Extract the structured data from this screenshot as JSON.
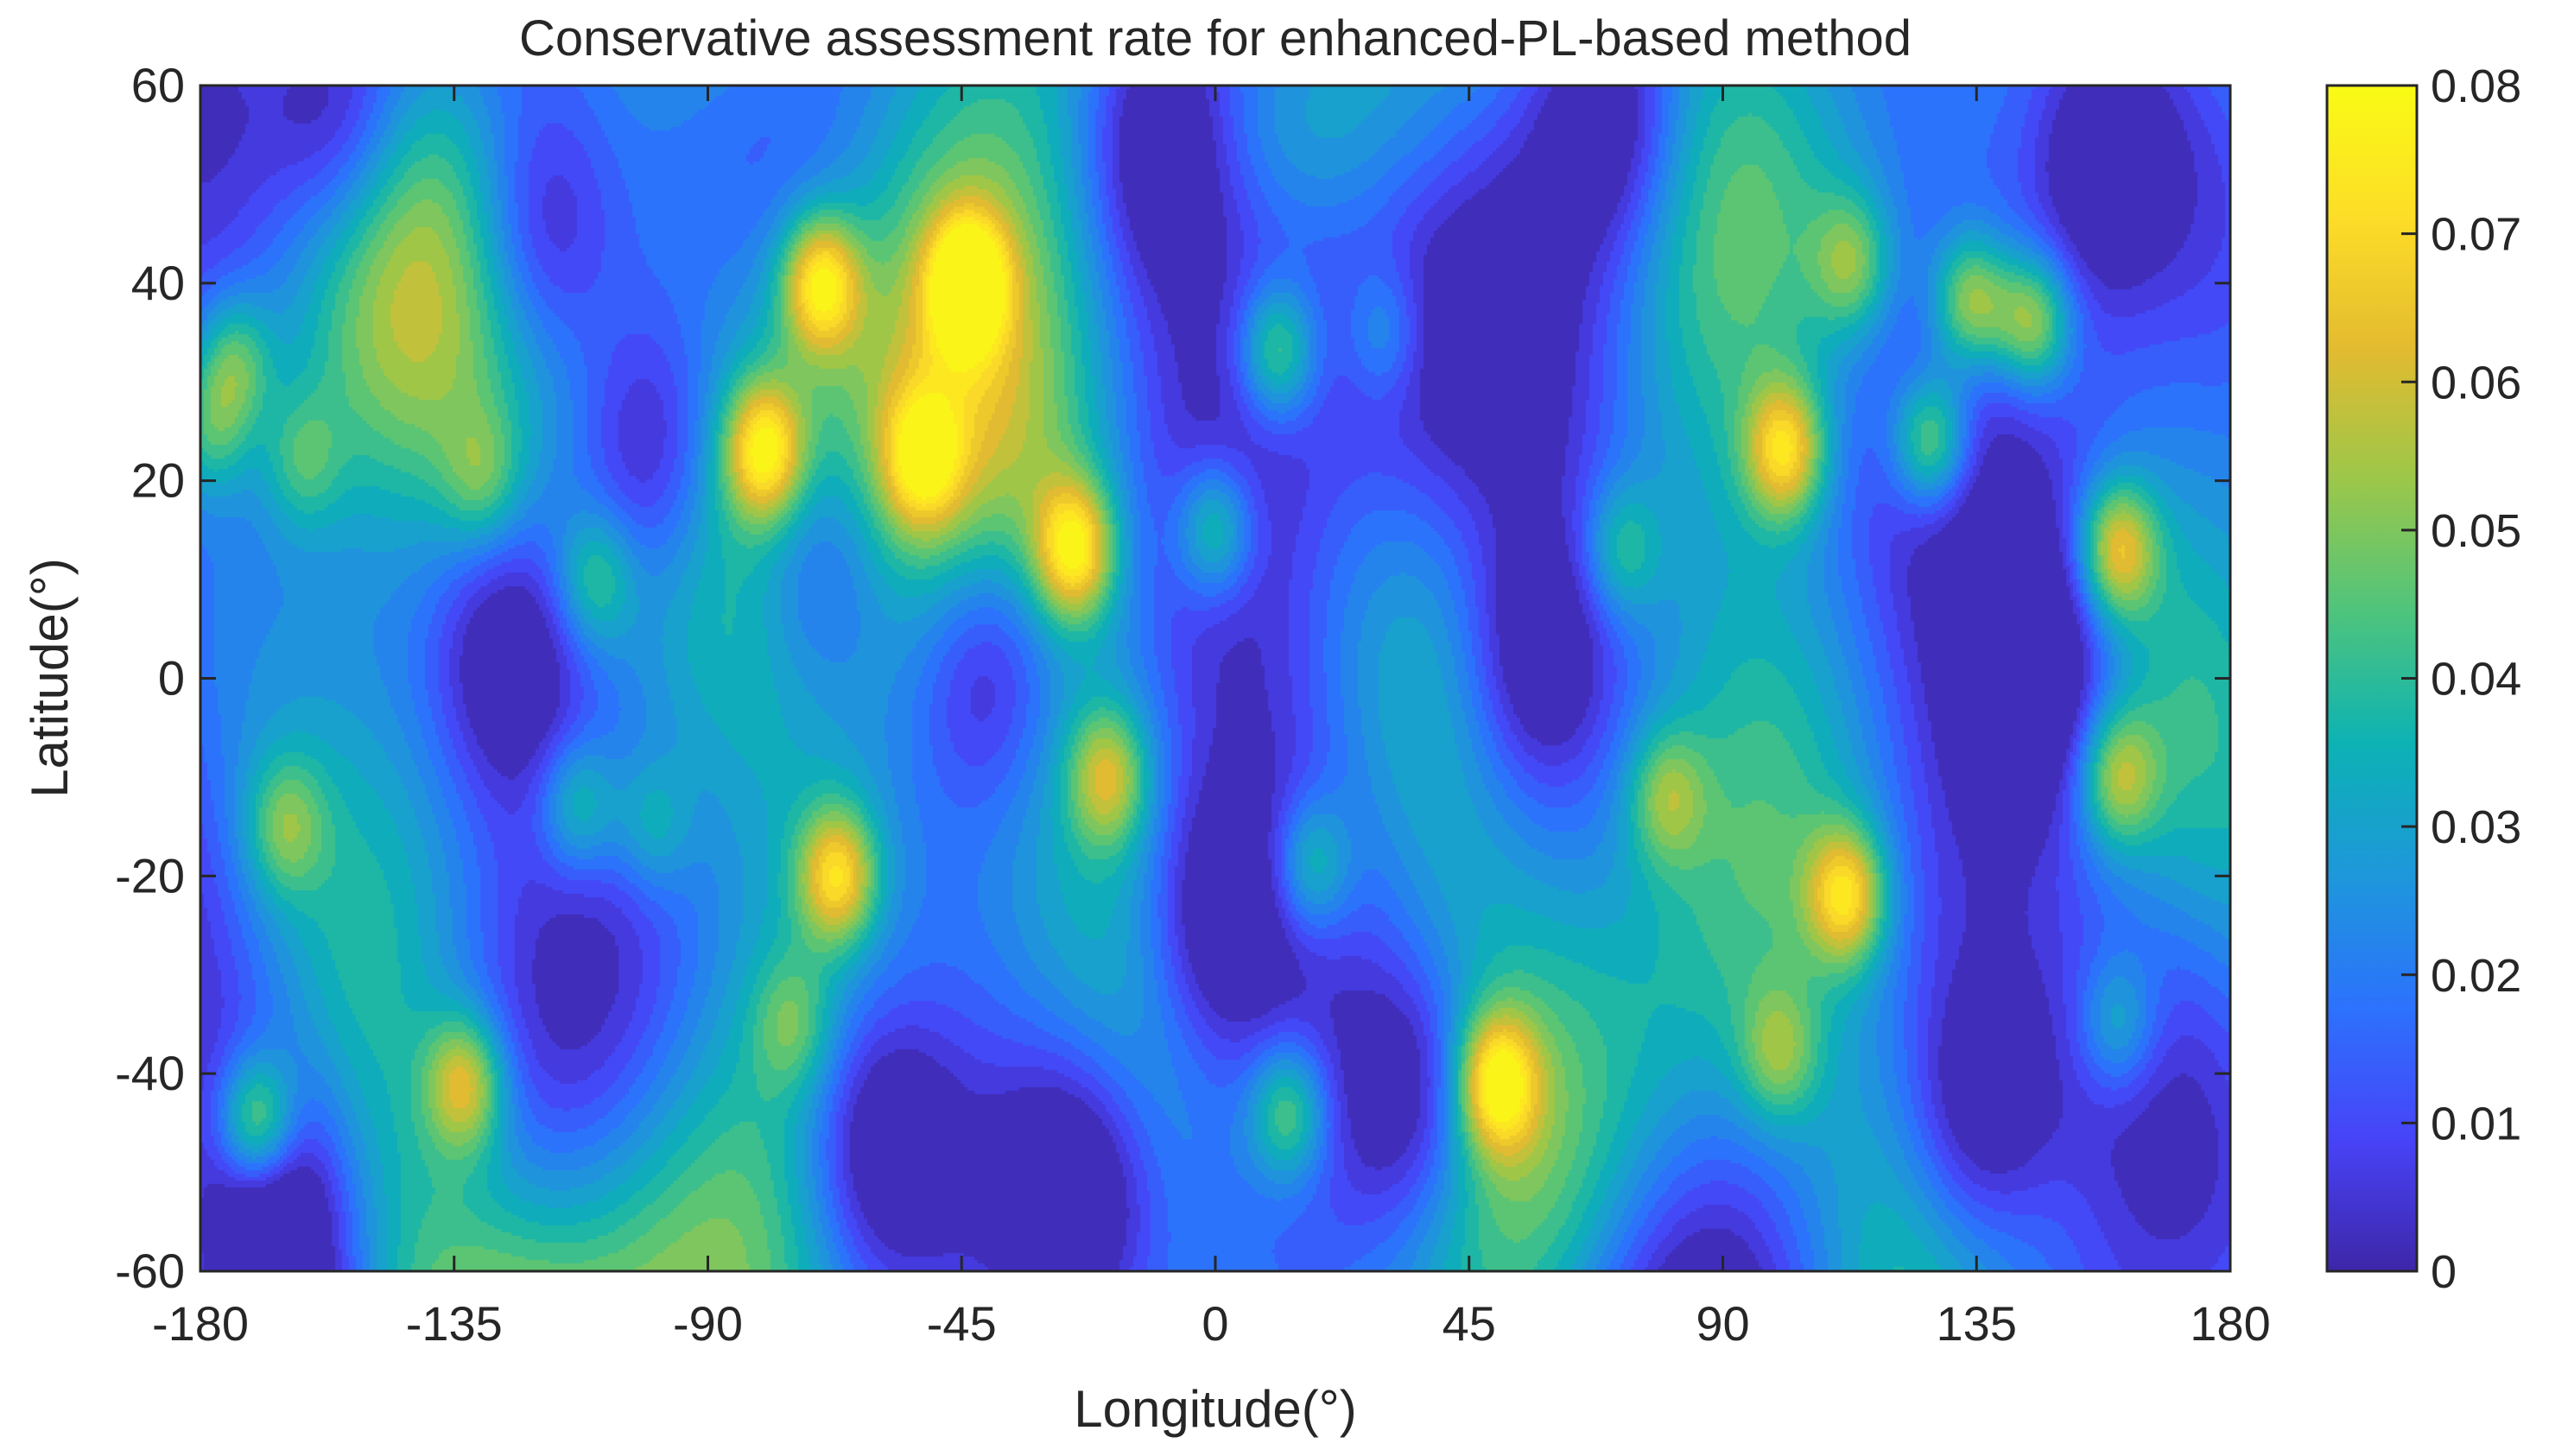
{
  "chart_data": {
    "type": "heatmap",
    "subtype": "filled-contour",
    "title": "Conservative assessment rate for enhanced-PL-based method",
    "xlabel": "Longitude(°)",
    "ylabel": "Latitude(°)",
    "xlim": [
      -180,
      180
    ],
    "ylim": [
      -60,
      60
    ],
    "xticks": [
      -180,
      -135,
      -90,
      -45,
      0,
      45,
      90,
      135,
      180
    ],
    "yticks": [
      -60,
      -40,
      -20,
      0,
      20,
      40,
      60
    ],
    "colorbar": {
      "colormap": "parula",
      "clim": [
        0,
        0.08
      ],
      "ticks": [
        "0",
        "0.01",
        "0.02",
        "0.03",
        "0.04",
        "0.05",
        "0.06",
        "0.07",
        "0.08"
      ],
      "stops": [
        "#3e26a8",
        "#4743f8",
        "#2c72fc",
        "#1e97db",
        "#0cb2b4",
        "#4ec47d",
        "#9bc74a",
        "#e3bb30",
        "#fddd27",
        "#f9fb15"
      ]
    },
    "field": {
      "background": 0.022,
      "hotspots": [
        {
          "lon": 12,
          "lat": 55,
          "v": 0.03
        }
      ],
      "low_regions": [
        {
          "lon": -125,
          "lat": 2,
          "v": 0.0
        },
        {
          "lon": -40,
          "lat": 2,
          "v": 0.0
        },
        {
          "lon": 57,
          "lat": 2,
          "v": 0.0
        },
        {
          "lon": 146,
          "lat": 0,
          "v": 0.0
        },
        {
          "lon": -70,
          "lat": 12,
          "v": 0.0
        },
        {
          "lon": -155,
          "lat": 57,
          "v": 0.0
        },
        {
          "lon": -10,
          "lat": 55,
          "v": 0.0
        },
        {
          "lon": 70,
          "lat": 57,
          "v": 0.0
        },
        {
          "lon": 157,
          "lat": 52,
          "v": 0.0
        },
        {
          "lon": -120,
          "lat": 45,
          "v": 0.0
        },
        {
          "lon": -100,
          "lat": 23,
          "v": 0.0
        },
        {
          "lon": -165,
          "lat": -55,
          "v": 0.0
        },
        {
          "lon": -60,
          "lat": -47,
          "v": 0.0
        },
        {
          "lon": -25,
          "lat": -52,
          "v": 0.0
        },
        {
          "lon": 35,
          "lat": -42,
          "v": 0.0
        },
        {
          "lon": 135,
          "lat": -45,
          "v": 0.0
        },
        {
          "lon": 0,
          "lat": -25,
          "v": 0.0
        }
      ],
      "peaks": [
        {
          "lon": -80,
          "lat": 23,
          "v": 0.068
        },
        {
          "lon": -70,
          "lat": 40,
          "v": 0.07
        },
        {
          "lon": -44,
          "lat": 40,
          "v": 0.069
        },
        {
          "lon": -25,
          "lat": 13,
          "v": 0.069
        },
        {
          "lon": -67,
          "lat": -20,
          "v": 0.066
        },
        {
          "lon": -170,
          "lat": -45,
          "v": 0.066
        },
        {
          "lon": -133,
          "lat": -41,
          "v": 0.06
        },
        {
          "lon": 50,
          "lat": -41,
          "v": 0.068
        },
        {
          "lon": 112,
          "lat": -22,
          "v": 0.066
        },
        {
          "lon": 101,
          "lat": 23,
          "v": 0.066
        },
        {
          "lon": 127,
          "lat": 24,
          "v": 0.063
        },
        {
          "lon": 160,
          "lat": 13,
          "v": 0.066
        },
        {
          "lon": 134,
          "lat": 38,
          "v": 0.062
        },
        {
          "lon": 145,
          "lat": 36,
          "v": 0.062
        },
        {
          "lon": 11,
          "lat": 33,
          "v": 0.058
        },
        {
          "lon": -19,
          "lat": -10,
          "v": 0.055
        },
        {
          "lon": 17,
          "lat": -19,
          "v": 0.05
        },
        {
          "lon": 13,
          "lat": -44,
          "v": 0.055
        },
        {
          "lon": -52,
          "lat": 22,
          "v": 0.055
        },
        {
          "lon": 160,
          "lat": -10,
          "v": 0.054
        },
        {
          "lon": -174,
          "lat": 32,
          "v": 0.05
        },
        {
          "lon": -178,
          "lat": 25,
          "v": 0.045
        },
        {
          "lon": 80,
          "lat": -12,
          "v": 0.047
        },
        {
          "lon": -110,
          "lat": 10,
          "v": 0.046
        },
        {
          "lon": -113,
          "lat": -13,
          "v": 0.048
        },
        {
          "lon": -165,
          "lat": -15,
          "v": 0.045
        },
        {
          "lon": -100,
          "lat": -15,
          "v": 0.04
        },
        {
          "lon": 0,
          "lat": 15,
          "v": 0.055
        },
        {
          "lon": 100,
          "lat": -38,
          "v": 0.045
        },
        {
          "lon": 160,
          "lat": -35,
          "v": 0.045
        },
        {
          "lon": 72,
          "lat": 13,
          "v": 0.045
        },
        {
          "lon": -130,
          "lat": 20,
          "v": 0.04
        },
        {
          "lon": -75,
          "lat": -35,
          "v": 0.04
        },
        {
          "lon": 30,
          "lat": 35,
          "v": 0.04
        },
        {
          "lon": 113,
          "lat": 42,
          "v": 0.048
        },
        {
          "lon": -162,
          "lat": 22,
          "v": 0.04
        }
      ]
    }
  }
}
